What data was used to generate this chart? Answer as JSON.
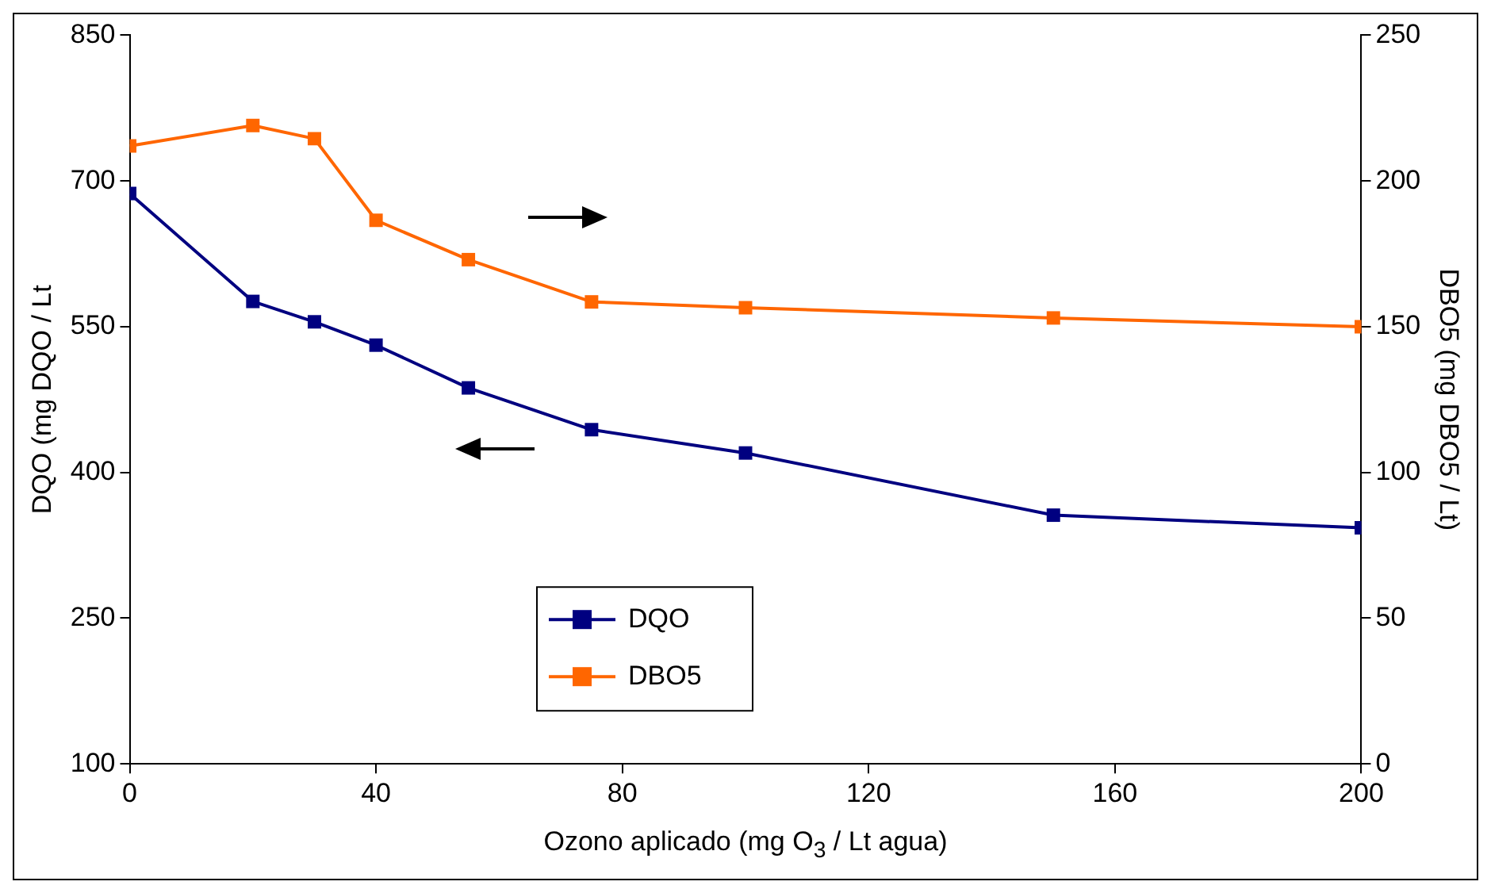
{
  "chart_data": {
    "type": "line",
    "xlabel": "Ozono aplicado (mg O$_{3}$ / Lt agua)",
    "ylabel": "DQO (mg DQO / Lt",
    "y2label": "DBO5 (mg DBO5 / Lt)",
    "x": [
      0,
      20,
      30,
      40,
      55,
      75,
      100,
      150,
      200
    ],
    "series": [
      {
        "name": "DQO",
        "color": "#000080",
        "values": [
          687,
          576,
          555,
          531,
          487,
          444,
          420,
          356,
          343
        ]
      },
      {
        "name": "DBO5",
        "color": "#ff6600",
        "axis": "y2",
        "values": [
          212,
          219,
          214.5,
          186.5,
          173,
          158.5,
          156.5,
          153,
          150
        ]
      }
    ],
    "xlim": [
      0,
      200
    ],
    "xticks": [
      0,
      40,
      80,
      120,
      160,
      200
    ],
    "ylim": [
      100,
      850
    ],
    "yticks": [
      100,
      250,
      400,
      550,
      700,
      850
    ],
    "y2lim": [
      0,
      250
    ],
    "y2ticks": [
      0,
      50,
      100,
      150,
      200,
      250
    ],
    "grid": false,
    "legend": "bottom",
    "marker": "square",
    "line_style": "solid"
  }
}
